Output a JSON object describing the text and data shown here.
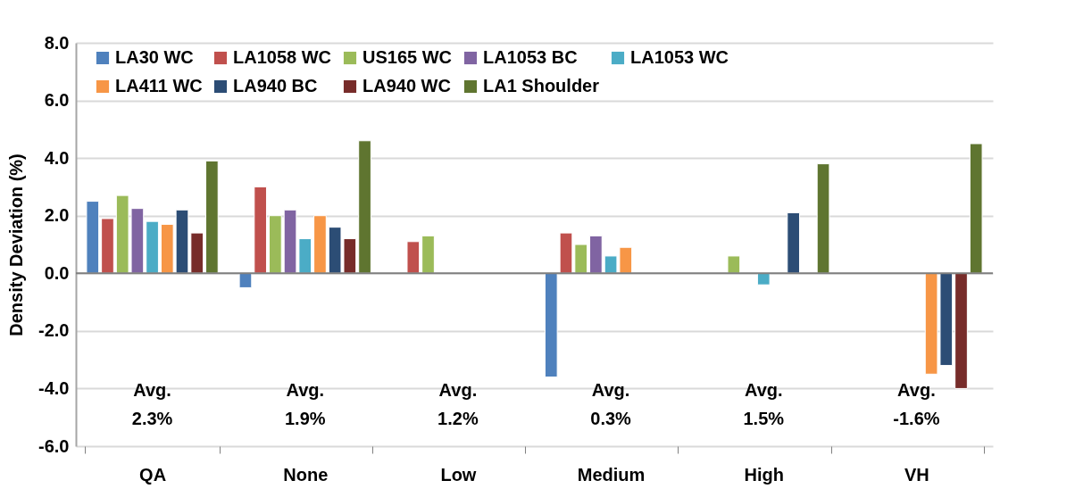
{
  "chart_data": {
    "type": "bar",
    "ylabel": "Density Deviation (%)",
    "categories": [
      "QA",
      "None",
      "Low",
      "Medium",
      "High",
      "VH"
    ],
    "series": [
      {
        "name": "LA30 WC",
        "color": "#4f81bd",
        "values": [
          2.5,
          -0.5,
          null,
          -3.6,
          null,
          null
        ]
      },
      {
        "name": "LA1058 WC",
        "color": "#c0504d",
        "values": [
          1.9,
          3.0,
          1.1,
          1.4,
          null,
          null
        ]
      },
      {
        "name": "US165 WC",
        "color": "#9bbb59",
        "values": [
          2.7,
          2.0,
          1.3,
          1.0,
          0.6,
          null
        ]
      },
      {
        "name": "LA1053 BC",
        "color": "#8064a2",
        "values": [
          2.25,
          2.2,
          null,
          1.3,
          null,
          null
        ]
      },
      {
        "name": "LA1053 WC",
        "color": "#4bacc6",
        "values": [
          1.8,
          1.2,
          null,
          0.6,
          -0.4,
          null
        ]
      },
      {
        "name": "LA411 WC",
        "color": "#f79646",
        "values": [
          1.7,
          2.0,
          null,
          0.9,
          null,
          -3.5
        ]
      },
      {
        "name": "LA940 BC",
        "color": "#2c4d75",
        "values": [
          2.2,
          1.6,
          null,
          null,
          2.1,
          -3.2
        ]
      },
      {
        "name": "LA940 WC",
        "color": "#772c2a",
        "values": [
          1.4,
          1.2,
          null,
          null,
          null,
          -4.0
        ]
      },
      {
        "name": "LA1 Shoulder",
        "color": "#5f7530",
        "values": [
          3.9,
          4.6,
          null,
          null,
          3.8,
          4.5
        ]
      }
    ],
    "ylim": [
      -6,
      8
    ],
    "yticks": [
      {
        "value": -6,
        "label": "-6.0"
      },
      {
        "value": -4,
        "label": "-4.0"
      },
      {
        "value": -2,
        "label": "-2.0"
      },
      {
        "value": 0,
        "label": "0.0"
      },
      {
        "value": 2,
        "label": "2.0"
      },
      {
        "value": 4,
        "label": "4.0"
      },
      {
        "value": 6,
        "label": "6.0"
      },
      {
        "value": 8,
        "label": "8.0"
      }
    ],
    "grid": "y",
    "legend": "top",
    "annotations": [
      "Avg.\n2.3%",
      "Avg.\n1.9%",
      "Avg.\n1.2%",
      "Avg.\n0.3%",
      "Avg.\n1.5%",
      "Avg.\n-1.6%"
    ]
  }
}
